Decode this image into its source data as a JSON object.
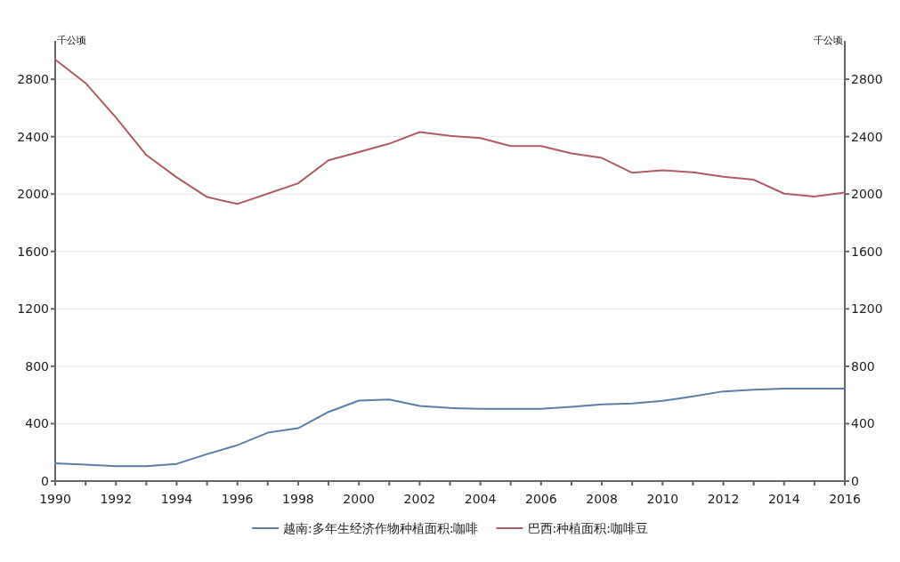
{
  "chart_data": {
    "type": "line",
    "x": [
      1990,
      1991,
      1992,
      1993,
      1994,
      1995,
      1996,
      1997,
      1998,
      1999,
      2000,
      2001,
      2002,
      2003,
      2004,
      2005,
      2006,
      2007,
      2008,
      2009,
      2010,
      2011,
      2012,
      2013,
      2014,
      2015,
      2016
    ],
    "series": [
      {
        "name": "越南:多年生经济作物种植面积:咖啡",
        "color": "#5a7fa8",
        "values": [
          124,
          114,
          104,
          104,
          120,
          188,
          250,
          337,
          368,
          482,
          561,
          569,
          524,
          509,
          503,
          503,
          503,
          517,
          534,
          540,
          559,
          590,
          625,
          637,
          644,
          644,
          644
        ]
      },
      {
        "name": "巴西:种植面积:咖啡豆",
        "color": "#b05c64",
        "values": [
          2937,
          2773,
          2533,
          2272,
          2117,
          1979,
          1931,
          2003,
          2075,
          2235,
          2293,
          2351,
          2432,
          2405,
          2390,
          2334,
          2334,
          2283,
          2252,
          2148,
          2165,
          2152,
          2121,
          2100,
          2003,
          1982,
          2010
        ]
      }
    ],
    "xlim": [
      1990,
      2016
    ],
    "xticks": [
      1990,
      {
        "value": 1991,
        "label": null
      },
      1992,
      {
        "value": 1993,
        "label": null
      },
      1994,
      {
        "value": 1995,
        "label": null
      },
      1996,
      {
        "value": 1997,
        "label": null
      },
      1998,
      {
        "value": 1999,
        "label": null
      },
      2000,
      {
        "value": 2001,
        "label": null
      },
      2002,
      {
        "value": 2003,
        "label": null
      },
      2004,
      {
        "value": 2005,
        "label": null
      },
      2006,
      {
        "value": 2007,
        "label": null
      },
      2008,
      {
        "value": 2009,
        "label": null
      },
      2010,
      {
        "value": 2011,
        "label": null
      },
      2012,
      {
        "value": 2013,
        "label": null
      },
      2014,
      {
        "value": 2015,
        "label": null
      },
      2016
    ],
    "ylim": [
      0,
      3067
    ],
    "yticks": [
      0,
      400,
      800,
      1200,
      1600,
      2000,
      2400,
      2800
    ],
    "y2lim": [
      0,
      3067
    ],
    "y2ticks": [
      0,
      400,
      800,
      1200,
      1600,
      2000,
      2400,
      2800
    ],
    "ylabel": "千公顷",
    "y2label": "千公顷",
    "grid": "y",
    "legend": "bottom"
  }
}
